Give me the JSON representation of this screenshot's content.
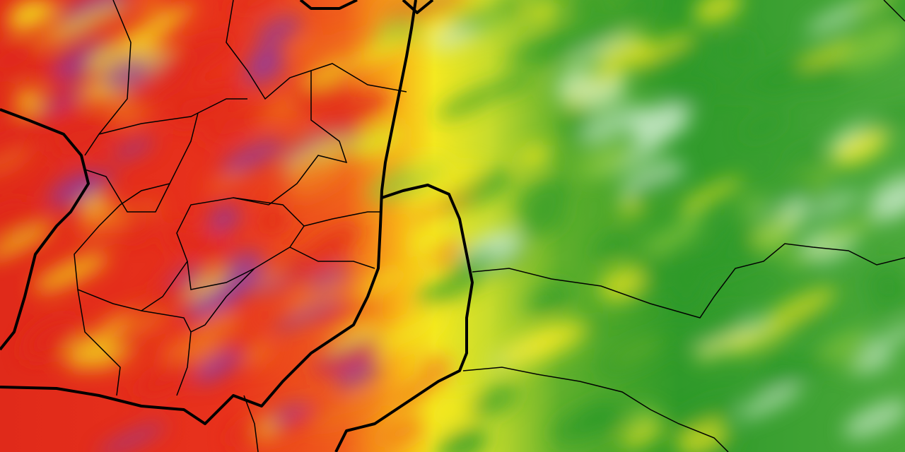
{
  "map": {
    "type": "weather-heatmap",
    "palette": {
      "extreme": "#8a3aa8",
      "very_high": "#e02a1a",
      "high": "#f07a1c",
      "moderate": "#f4e820",
      "low": "#8cc83a",
      "very_low": "#2f9a2a",
      "minimal": "#c8e8c8"
    },
    "border_color": "#000000"
  }
}
